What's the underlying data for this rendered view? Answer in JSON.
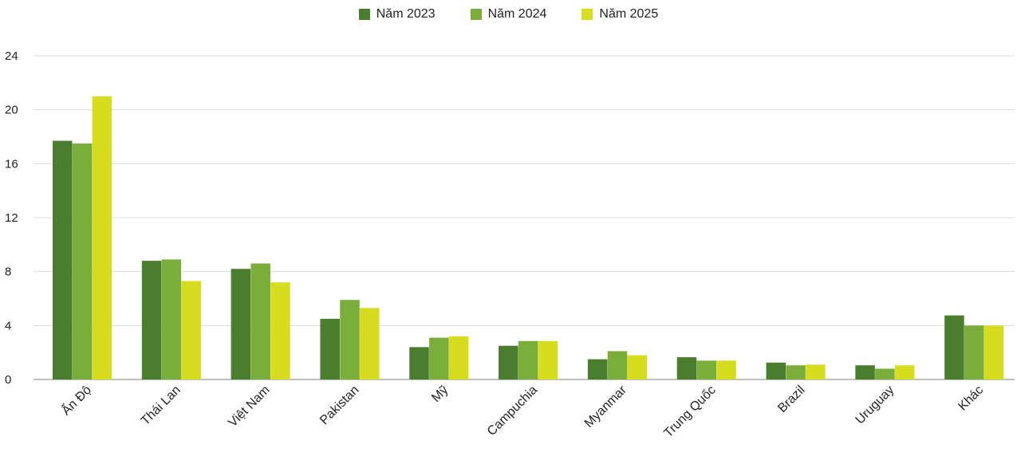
{
  "chart_data": {
    "type": "bar",
    "title": "",
    "xlabel": "",
    "ylabel": "",
    "ylim": [
      0,
      24
    ],
    "yticks": [
      "0",
      "4",
      "8",
      "12",
      "16",
      "20",
      "24"
    ],
    "grid": true,
    "legend_position": "top-center",
    "categories": [
      "Ấn Độ",
      "Thái Lan",
      "Việt Nam",
      "Pakistan",
      "Mỹ",
      "Campuchia",
      "Myanmar",
      "Trung Quốc",
      "Brazil",
      "Uruguay",
      "Khác"
    ],
    "series": [
      {
        "name": "Năm 2023",
        "color": "#4a7d2e",
        "values": [
          17.7,
          8.8,
          8.2,
          4.5,
          2.4,
          2.5,
          1.5,
          1.65,
          1.25,
          1.05,
          4.75
        ]
      },
      {
        "name": "Năm 2024",
        "color": "#7aad3a",
        "values": [
          17.5,
          8.9,
          8.6,
          5.9,
          3.1,
          2.85,
          2.1,
          1.4,
          1.05,
          0.8,
          4.0
        ]
      },
      {
        "name": "Năm 2025",
        "color": "#d6dd1e",
        "values": [
          21.0,
          7.3,
          7.2,
          5.3,
          3.2,
          2.85,
          1.8,
          1.4,
          1.1,
          1.05,
          4.0
        ]
      }
    ]
  }
}
